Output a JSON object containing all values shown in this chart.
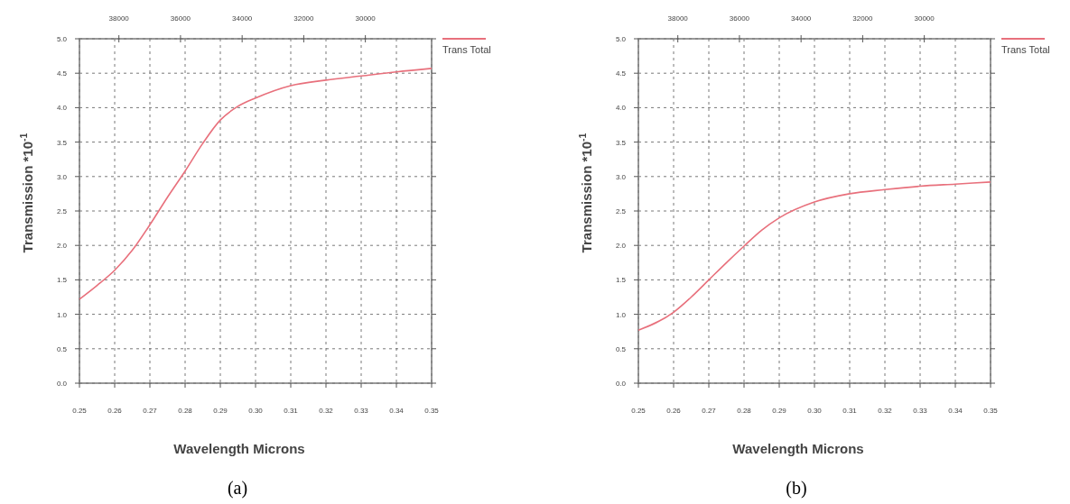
{
  "chart_data": [
    {
      "type": "line",
      "xlabel": "Wavelength Microns",
      "ylabel": "Transmission   *10$^{-1}$",
      "annotations": [
        "(a)"
      ],
      "xlim": [
        0.25,
        0.35
      ],
      "xticks": [
        {
          "value": 0.25,
          "label": "0.25"
        },
        {
          "value": 0.26,
          "label": "0.26"
        },
        {
          "value": 0.27,
          "label": "0.27"
        },
        {
          "value": 0.28,
          "label": "0.28"
        },
        {
          "value": 0.29,
          "label": "0.29"
        },
        {
          "value": 0.3,
          "label": "0.30"
        },
        {
          "value": 0.31,
          "label": "0.31"
        },
        {
          "value": 0.32,
          "label": "0.32"
        },
        {
          "value": 0.33,
          "label": "0.33"
        },
        {
          "value": 0.34,
          "label": "0.34"
        },
        {
          "value": 0.35,
          "label": "0.35"
        }
      ],
      "x2lim": [
        39280,
        27850
      ],
      "x2ticks": [
        38000,
        36000,
        34000,
        32000,
        30000
      ],
      "ylim": [
        0,
        5
      ],
      "yticks": [
        {
          "value": 0,
          "label": "0.0"
        },
        {
          "value": 0.5,
          "label": "0.5"
        },
        {
          "value": 1,
          "label": "1.0"
        },
        {
          "value": 1.5,
          "label": "1.5"
        },
        {
          "value": 2,
          "label": "2.0"
        },
        {
          "value": 2.5,
          "label": "2.5"
        },
        {
          "value": 3,
          "label": "3.0"
        },
        {
          "value": 3.5,
          "label": "3.5"
        },
        {
          "value": 4,
          "label": "4.0"
        },
        {
          "value": 4.5,
          "label": "4.5"
        },
        {
          "value": 5,
          "label": "5.0"
        }
      ],
      "grid": true,
      "legend": "top right",
      "line_style": "solid",
      "series": [
        {
          "name": "Trans  Total",
          "color": "#e8707c",
          "x": [
            0.25,
            0.255,
            0.26,
            0.265,
            0.27,
            0.275,
            0.28,
            0.285,
            0.29,
            0.295,
            0.3,
            0.31,
            0.32,
            0.33,
            0.34,
            0.35
          ],
          "values": [
            1.22,
            1.42,
            1.64,
            1.93,
            2.3,
            2.7,
            3.08,
            3.48,
            3.82,
            4.02,
            4.14,
            4.32,
            4.4,
            4.46,
            4.52,
            4.57
          ]
        }
      ]
    },
    {
      "type": "line",
      "xlabel": "Wavelength Microns",
      "ylabel": "Transmission   *10$^{-1}$",
      "annotations": [
        "(b)"
      ],
      "xlim": [
        0.25,
        0.35
      ],
      "xticks": [
        {
          "value": 0.25,
          "label": "0.25"
        },
        {
          "value": 0.26,
          "label": "0.26"
        },
        {
          "value": 0.27,
          "label": "0.27"
        },
        {
          "value": 0.28,
          "label": "0.28"
        },
        {
          "value": 0.29,
          "label": "0.29"
        },
        {
          "value": 0.3,
          "label": "0.30"
        },
        {
          "value": 0.31,
          "label": "0.31"
        },
        {
          "value": 0.32,
          "label": "0.32"
        },
        {
          "value": 0.33,
          "label": "0.33"
        },
        {
          "value": 0.34,
          "label": "0.34"
        },
        {
          "value": 0.35,
          "label": "0.35"
        }
      ],
      "x2lim": [
        39280,
        27850
      ],
      "x2ticks": [
        38000,
        36000,
        34000,
        32000,
        30000
      ],
      "ylim": [
        0,
        5
      ],
      "yticks": [
        {
          "value": 0,
          "label": "0.0"
        },
        {
          "value": 0.5,
          "label": "0.5"
        },
        {
          "value": 1,
          "label": "1.0"
        },
        {
          "value": 1.5,
          "label": "1.5"
        },
        {
          "value": 2,
          "label": "2.0"
        },
        {
          "value": 2.5,
          "label": "2.5"
        },
        {
          "value": 3,
          "label": "3.0"
        },
        {
          "value": 3.5,
          "label": "3.5"
        },
        {
          "value": 4,
          "label": "4.0"
        },
        {
          "value": 4.5,
          "label": "4.5"
        },
        {
          "value": 5,
          "label": "5.0"
        }
      ],
      "grid": true,
      "legend": "top right",
      "line_style": "solid",
      "series": [
        {
          "name": "Trans  Total",
          "color": "#e8707c",
          "x": [
            0.25,
            0.26,
            0.265,
            0.27,
            0.275,
            0.28,
            0.285,
            0.29,
            0.3,
            0.31,
            0.32,
            0.33,
            0.34,
            0.35
          ],
          "values": [
            0.77,
            1.03,
            1.25,
            1.5,
            1.75,
            1.99,
            2.22,
            2.4,
            2.63,
            2.75,
            2.81,
            2.86,
            2.89,
            2.92
          ]
        }
      ]
    }
  ]
}
